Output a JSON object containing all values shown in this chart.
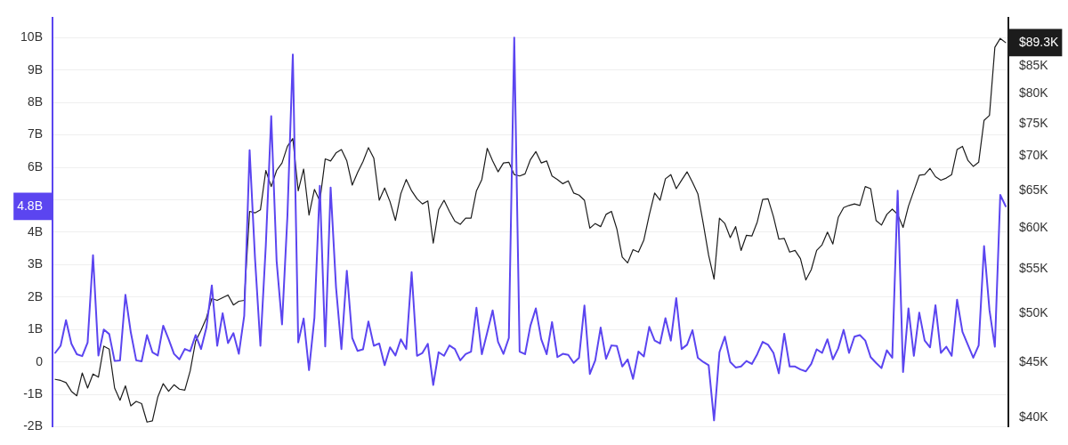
{
  "chart_data": {
    "type": "line",
    "categories": [
      null,
      null,
      null,
      null,
      null,
      null,
      null,
      null,
      null,
      null,
      null,
      null,
      null,
      null,
      null,
      null,
      null,
      null,
      null,
      null,
      null,
      null,
      null,
      null,
      null,
      null,
      null,
      null,
      null,
      null,
      null,
      null,
      null,
      null,
      null,
      null,
      null,
      null,
      null,
      null,
      null,
      null,
      null,
      null,
      null,
      null,
      null,
      null,
      null,
      null,
      null,
      null,
      null,
      null,
      null,
      null,
      null,
      null,
      null,
      null,
      null,
      null,
      null,
      null,
      null,
      null,
      null,
      null,
      null,
      null,
      null,
      null,
      null,
      null,
      null,
      null,
      null,
      null,
      null,
      null,
      null,
      null,
      null,
      null,
      null,
      null,
      null,
      null,
      null,
      null,
      null,
      null,
      null,
      null,
      null,
      null,
      null,
      null,
      null,
      null,
      null,
      null,
      null,
      null,
      null,
      null,
      null,
      null,
      null,
      null,
      null,
      null,
      null,
      null,
      null,
      null,
      null,
      null,
      null,
      null,
      null,
      null,
      null,
      null,
      null,
      null,
      null,
      null,
      null,
      null,
      null,
      null,
      null,
      null,
      null,
      null,
      null,
      null,
      null,
      null,
      null,
      null,
      null,
      null,
      null,
      null,
      null,
      null,
      null,
      null,
      null,
      null,
      null,
      null,
      null,
      null,
      null,
      null,
      null,
      null,
      null,
      null,
      null,
      null,
      null,
      null,
      null,
      null,
      null,
      null,
      null,
      null,
      null,
      null,
      null,
      null,
      null
    ],
    "series": [
      {
        "color": "#5b45f0",
        "values": [
          0.28,
          0.5,
          1.29,
          0.56,
          0.24,
          0.18,
          0.6,
          3.29,
          0.2,
          1.0,
          0.86,
          0.03,
          0.05,
          2.07,
          0.91,
          0.05,
          0.02,
          0.83,
          0.3,
          0.2,
          1.12,
          0.7,
          0.25,
          0.08,
          0.4,
          0.33,
          0.83,
          0.4,
          1.06,
          2.36,
          0.5,
          1.5,
          0.58,
          0.89,
          0.25,
          1.42,
          6.53,
          3.19,
          0.5,
          3.6,
          7.58,
          3.11,
          1.16,
          4.5,
          9.48,
          0.6,
          1.34,
          -0.25,
          1.37,
          5.43,
          0.48,
          5.38,
          2.3,
          0.4,
          2.81,
          0.74,
          0.34,
          0.39,
          1.25,
          0.5,
          0.57,
          -0.1,
          0.45,
          0.2,
          0.7,
          0.4,
          2.77,
          0.19,
          0.28,
          0.56,
          -0.71,
          0.3,
          0.19,
          0.51,
          0.4,
          0.05,
          0.24,
          0.32,
          1.67,
          0.24,
          0.91,
          1.59,
          0.62,
          0.25,
          0.74,
          10.0,
          0.32,
          0.24,
          1.12,
          1.65,
          0.7,
          0.24,
          1.23,
          0.15,
          0.25,
          0.22,
          -0.03,
          0.13,
          1.74,
          -0.37,
          0.05,
          1.06,
          0.1,
          0.51,
          0.49,
          -0.14,
          0.08,
          -0.52,
          0.32,
          0.17,
          1.08,
          0.66,
          0.57,
          1.35,
          0.66,
          1.97,
          0.4,
          0.53,
          0.98,
          0.13,
          0,
          -0.1,
          -1.8,
          0.3,
          0.78,
          0,
          -0.17,
          -0.14,
          0.03,
          -0.06,
          0.24,
          0.62,
          0.53,
          0.28,
          -0.35,
          0.87,
          -0.14,
          -0.14,
          -0.23,
          -0.29,
          -0.06,
          0.39,
          0.28,
          0.7,
          0.08,
          0.42,
          0.99,
          0.28,
          0.78,
          0.83,
          0.66,
          0.15,
          -0.03,
          -0.19,
          0.36,
          0.13,
          5.28,
          -0.31,
          1.65,
          0.19,
          1.52,
          0.66,
          0.45,
          1.75,
          0.28,
          0.47,
          0.19,
          1.92,
          0.93,
          0.53,
          0.13,
          0.51,
          3.57,
          1.6,
          0.47,
          5.15,
          4.8
        ]
      },
      {
        "color": "#1c1c1c",
        "axis": "y2",
        "values": [
          43400,
          43300,
          43100,
          42300,
          41900,
          44000,
          42600,
          43900,
          43600,
          46600,
          46300,
          42600,
          41500,
          42800,
          41000,
          41400,
          41200,
          39600,
          39700,
          41800,
          43000,
          42300,
          42900,
          42500,
          42400,
          44200,
          47100,
          48200,
          49500,
          51600,
          51400,
          51700,
          52000,
          50900,
          51300,
          51400,
          62200,
          62000,
          62400,
          67900,
          65600,
          67900,
          69000,
          71500,
          72700,
          65000,
          68100,
          61700,
          65200,
          63600,
          69600,
          69300,
          70500,
          71000,
          69300,
          65800,
          67600,
          69200,
          71300,
          69700,
          63700,
          65400,
          63500,
          61000,
          64600,
          66600,
          65000,
          63900,
          63200,
          63600,
          58100,
          62400,
          63700,
          62200,
          60900,
          60500,
          61300,
          61300,
          65000,
          66600,
          71200,
          69300,
          67700,
          69000,
          69100,
          67300,
          67100,
          67400,
          69500,
          70700,
          69000,
          69300,
          67100,
          66600,
          66000,
          66400,
          64700,
          64400,
          63700,
          60000,
          60600,
          60200,
          61800,
          62200,
          59900,
          56400,
          55700,
          57300,
          57000,
          58500,
          61700,
          64700,
          63700,
          66700,
          67300,
          65300,
          66500,
          67700,
          66200,
          64600,
          60600,
          56600,
          53800,
          61300,
          60600,
          58800,
          60200,
          57200,
          59100,
          59000,
          60800,
          63800,
          63900,
          61500,
          58600,
          58700,
          57000,
          57200,
          56200,
          53700,
          54900,
          57200,
          57900,
          59500,
          58000,
          61400,
          62700,
          63000,
          63200,
          63000,
          65600,
          65300,
          61000,
          60400,
          61800,
          62500,
          61800,
          60100,
          62900,
          65000,
          67200,
          67300,
          68200,
          67000,
          66500,
          66800,
          67300,
          71000,
          71500,
          69400,
          68500,
          69100,
          75600,
          76400,
          88400,
          90100,
          89300
        ]
      }
    ],
    "ylim": [
      -2,
      10.6
    ],
    "yticks": [
      {
        "value": -2,
        "label": "-2B"
      },
      {
        "value": -1,
        "label": "-1B"
      },
      0,
      {
        "value": 1,
        "label": "1B"
      },
      {
        "value": 2,
        "label": "2B"
      },
      {
        "value": 3,
        "label": "3B"
      },
      {
        "value": 4,
        "label": "4B"
      },
      {
        "value": 4.8,
        "label": "4.8B"
      },
      {
        "value": 5,
        "label": null
      },
      {
        "value": 6,
        "label": "6B"
      },
      {
        "value": 7,
        "label": "7B"
      },
      {
        "value": 8,
        "label": "8B"
      },
      {
        "value": 9,
        "label": "9B"
      },
      {
        "value": 10,
        "label": "10B"
      }
    ],
    "y2lim": [
      39200,
      94100
    ],
    "y2ticks": [
      {
        "value": 40000,
        "label": "$40K"
      },
      {
        "value": 45000,
        "label": "$45K"
      },
      {
        "value": 50000,
        "label": "$50K"
      },
      {
        "value": 55000,
        "label": "$55K"
      },
      {
        "value": 60000,
        "label": "$60K"
      },
      {
        "value": 65000,
        "label": "$65K"
      },
      {
        "value": 70000,
        "label": "$70K"
      },
      {
        "value": 75000,
        "label": "$75K"
      },
      {
        "value": 80000,
        "label": "$80K"
      },
      {
        "value": 85000,
        "label": "$85K"
      },
      {
        "value": 89300,
        "label": "$89.3K"
      }
    ],
    "log": "y2",
    "grid": "y",
    "tick_labels": "y"
  }
}
